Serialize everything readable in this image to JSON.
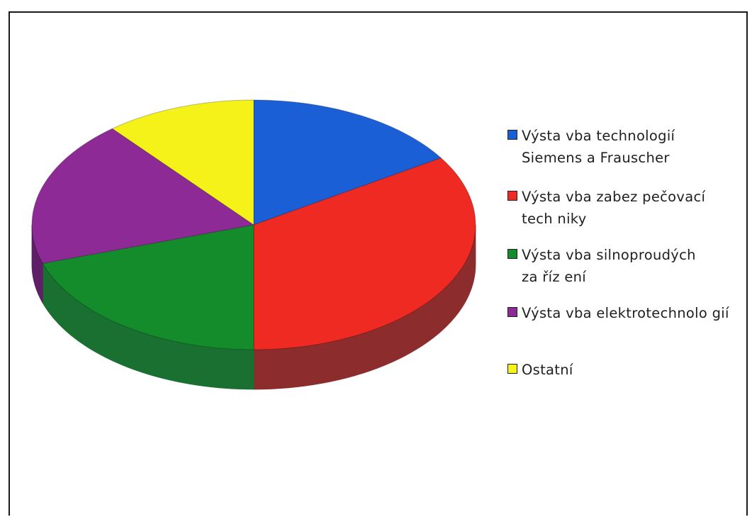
{
  "chart_data": {
    "type": "pie",
    "title": "",
    "three_d": true,
    "legend_position": "right",
    "slices": [
      {
        "label": "Výsta vba technologií\nSiemens a Frauscher",
        "value": 16,
        "color": "#1a5fd6",
        "side_color": "#0f3a85"
      },
      {
        "label": "Výsta vba zabez pečovací\ntech niky",
        "value": 34,
        "color": "#ee2a22",
        "side_color": "#8c2c2c"
      },
      {
        "label": "Výsta vba silnoproudých\nza říz ení",
        "value": 20,
        "color": "#148c2c",
        "side_color": "#1a7030"
      },
      {
        "label": "Výsta vba elektrotechnolo gií",
        "value": 19,
        "color": "#8e2a96",
        "side_color": "#5e1f66"
      },
      {
        "label": "Ostatní",
        "value": 11,
        "color": "#f5f21a",
        "side_color": "#a9a512"
      }
    ]
  }
}
